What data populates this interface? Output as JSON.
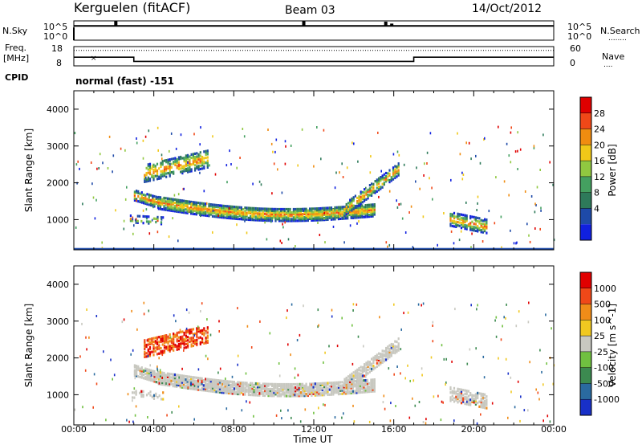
{
  "header": {
    "station": "Kerguelen (fitACF)",
    "beam": "Beam 03",
    "date": "14/Oct/2012"
  },
  "status_panels": {
    "nsky_label": "N.Sky",
    "nsearch_label": "N.Search",
    "nsearch_legend": "........",
    "freq_label_line1": "Freq.",
    "freq_label_line2": "[MHz]",
    "nave_label": "Nave",
    "nave_legend": "....",
    "cpid_label": "CPID",
    "cpid_text": "normal (fast) -151",
    "noise_ticks": [
      "10^5",
      "10^0"
    ],
    "freq_ticks": [
      "18",
      "8"
    ],
    "nave_ticks": [
      "60",
      "0"
    ]
  },
  "chart_data": [
    {
      "type": "line",
      "name_label": "N.Sky",
      "ylim": [
        0,
        5
      ],
      "yticks": [
        "10^5",
        "10^0"
      ],
      "baseline_log10": 3.7,
      "spikes": [
        {
          "x_hour": 2.1,
          "value_log10": 5.0
        },
        {
          "x_hour": 11.5,
          "value_log10": 5.0
        },
        {
          "x_hour": 15.6,
          "value_log10": 4.8
        },
        {
          "x_hour": 15.9,
          "value_log10": 4.3
        }
      ]
    },
    {
      "type": "line",
      "ylabel_left": "Freq. [MHz]",
      "ylabel_right": "Nave",
      "ylim_left": [
        8,
        18
      ],
      "ylim_right": [
        0,
        60
      ],
      "freq_steps": [
        {
          "from_hour": 0.0,
          "to_hour": 3.0,
          "mhz": 12.5
        },
        {
          "from_hour": 3.0,
          "to_hour": 17.0,
          "mhz": 10.3
        },
        {
          "from_hour": 17.0,
          "to_hour": 24.0,
          "mhz": 12.5
        }
      ],
      "nave_value": 48
    },
    {
      "type": "heatmap",
      "parameter": "Power",
      "ylabel": "Slant Range [km]",
      "colorbar_label": "Power [dB]",
      "colorbar_ticks": [
        "28",
        "24",
        "20",
        "16",
        "12",
        "8",
        "4"
      ],
      "xlim_hours": [
        0,
        24
      ],
      "ylim_km": [
        180,
        4500
      ],
      "yticks": [
        1000,
        2000,
        3000,
        4000
      ],
      "colors": [
        "#1020e0",
        "#1e4aa8",
        "#2e7a5a",
        "#44a060",
        "#90c840",
        "#f0c818",
        "#f08c10",
        "#f04818",
        "#e00000"
      ]
    },
    {
      "type": "heatmap",
      "parameter": "Velocity",
      "ylabel": "Slant Range [km]",
      "colorbar_label": "Velocity [m s^-1]",
      "colorbar_ticks": [
        "1000",
        "500",
        "100",
        "25",
        "-25",
        "-100",
        "-500",
        "-1000"
      ],
      "xlim_hours": [
        0,
        24
      ],
      "ylim_km": [
        180,
        4500
      ],
      "yticks": [
        1000,
        2000,
        3000,
        4000
      ],
      "xticks": [
        "00:00",
        "04:00",
        "08:00",
        "12:00",
        "16:00",
        "20:00",
        "00:00"
      ],
      "xlabel": "Time UT",
      "colors": [
        "#1830c8",
        "#2a6aa0",
        "#3c8a50",
        "#70c040",
        "#c8c8c0",
        "#f0c820",
        "#f08c18",
        "#f04818",
        "#e00000"
      ]
    }
  ]
}
